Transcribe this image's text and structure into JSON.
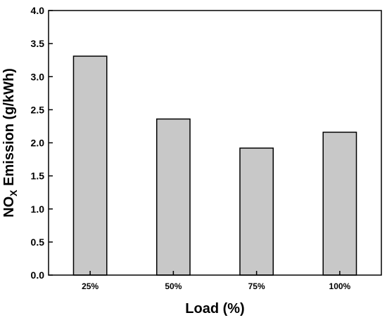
{
  "chart_data": {
    "type": "bar",
    "categories": [
      "25%",
      "50%",
      "75%",
      "100%"
    ],
    "values": [
      3.31,
      2.36,
      1.92,
      2.16
    ],
    "xlabel": "Load (%)",
    "ylabel": {
      "main": "NO",
      "subscript": "X",
      "rest": " Emission (g/kWh)"
    },
    "ylim": [
      0,
      4.0
    ],
    "yticks": [
      "0.0",
      "0.5",
      "1.0",
      "1.5",
      "2.0",
      "2.5",
      "3.0",
      "3.5",
      "4.0"
    ],
    "grid": false,
    "legend": "none",
    "bar_color": "#c8c8c8",
    "bar_edge_color": "#000000"
  }
}
